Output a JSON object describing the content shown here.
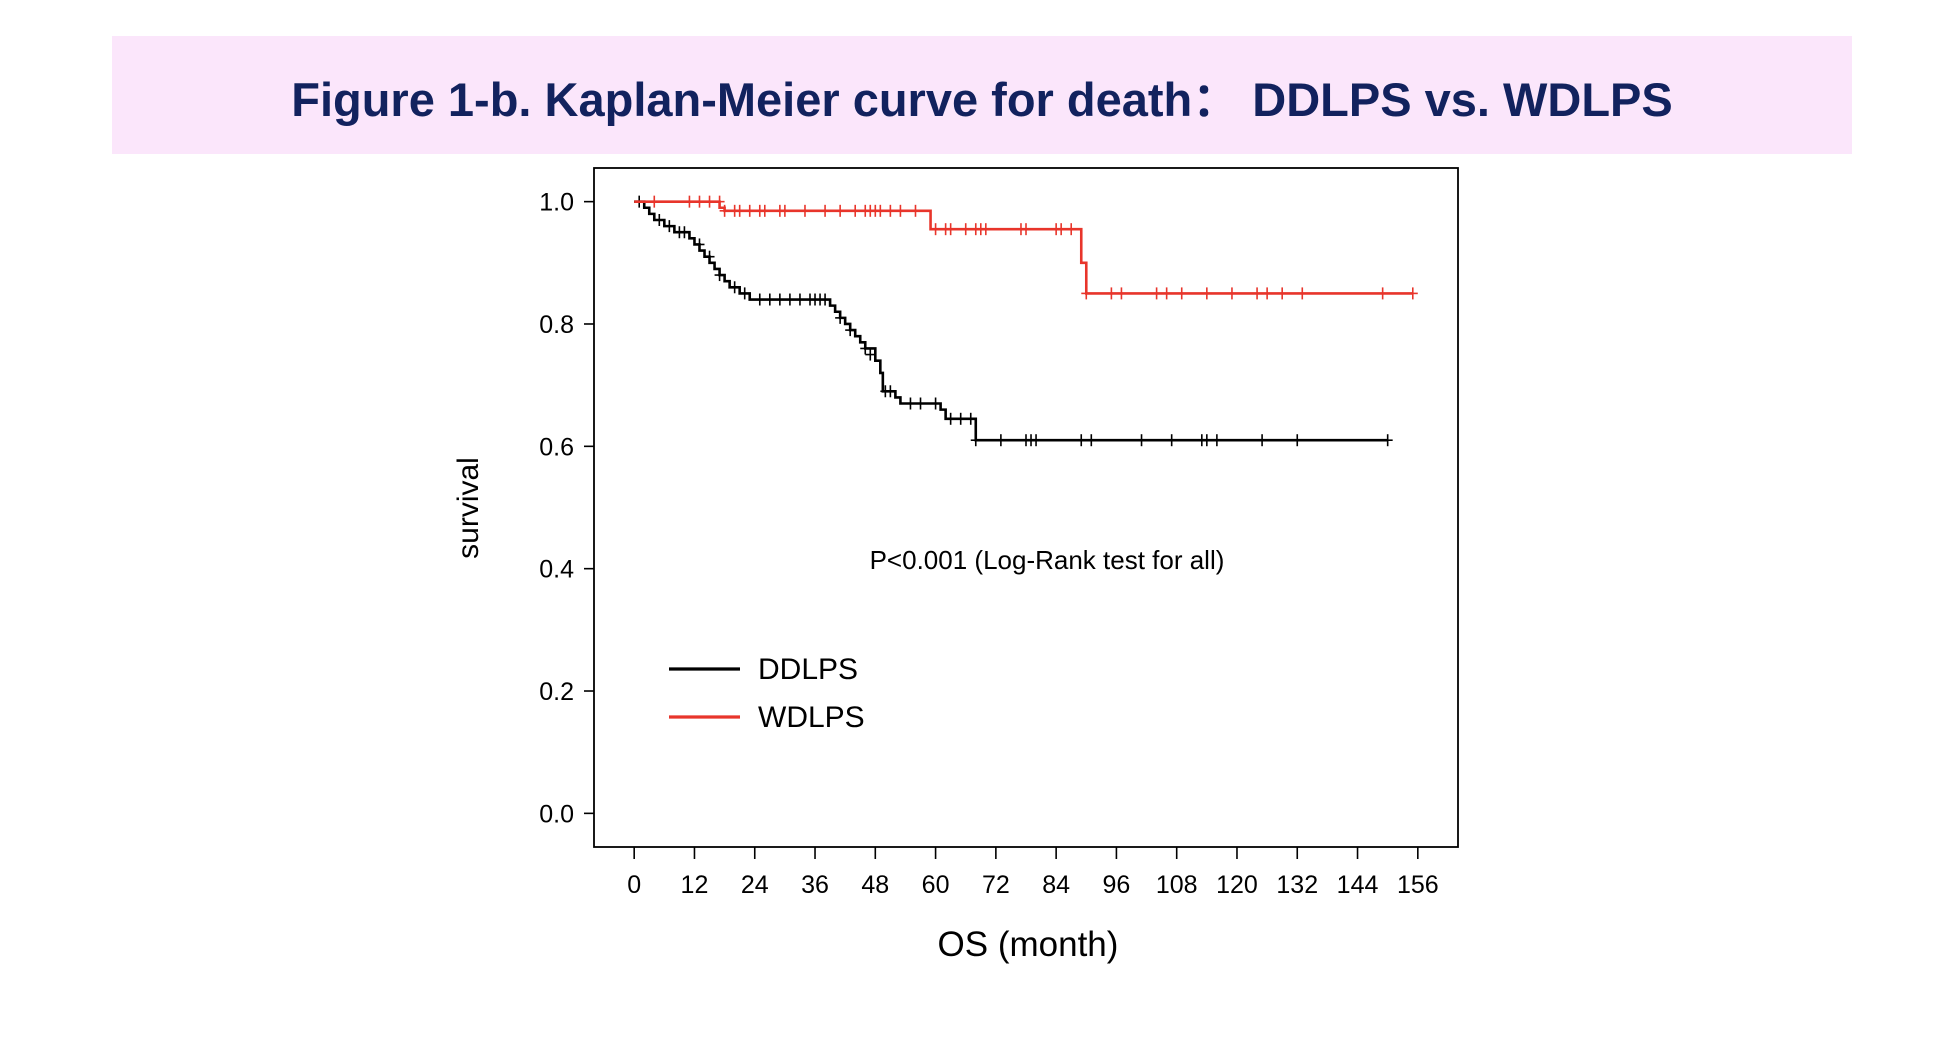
{
  "title": "Figure 1-b. Kaplan-Meier curve for death： DDLPS vs. WDLPS",
  "chart_data": {
    "type": "line",
    "subtype": "kaplan-meier step",
    "xlabel": "OS (month)",
    "ylabel": "survival",
    "xlim": [
      -8,
      164
    ],
    "ylim": [
      -0.055,
      1.055
    ],
    "xticks": [
      0,
      12,
      24,
      36,
      48,
      60,
      72,
      84,
      96,
      108,
      120,
      132,
      144,
      156
    ],
    "yticks": [
      0.0,
      0.2,
      0.4,
      0.6,
      0.8,
      1.0
    ],
    "ytick_labels": [
      "0.0",
      "0.2",
      "0.4",
      "0.6",
      "0.8",
      "1.0"
    ],
    "grid": false,
    "legend_position": "lower-left",
    "annotation": "P<0.001 (Log-Rank test for all)",
    "series": [
      {
        "name": "DDLPS",
        "color": "#000000",
        "steps": [
          [
            0,
            1.0
          ],
          [
            2,
            0.99
          ],
          [
            3,
            0.98
          ],
          [
            4,
            0.97
          ],
          [
            6,
            0.96
          ],
          [
            8,
            0.95
          ],
          [
            11,
            0.94
          ],
          [
            12,
            0.93
          ],
          [
            13,
            0.92
          ],
          [
            14,
            0.91
          ],
          [
            15,
            0.9
          ],
          [
            16,
            0.89
          ],
          [
            17,
            0.88
          ],
          [
            18,
            0.87
          ],
          [
            19,
            0.86
          ],
          [
            21,
            0.85
          ],
          [
            23,
            0.84
          ],
          [
            39,
            0.83
          ],
          [
            40,
            0.82
          ],
          [
            41,
            0.81
          ],
          [
            42,
            0.8
          ],
          [
            43,
            0.79
          ],
          [
            44,
            0.78
          ],
          [
            45,
            0.77
          ],
          [
            46,
            0.76
          ],
          [
            48,
            0.74
          ],
          [
            49,
            0.72
          ],
          [
            49.5,
            0.69
          ],
          [
            52,
            0.68
          ],
          [
            53,
            0.67
          ],
          [
            61,
            0.66
          ],
          [
            62,
            0.645
          ],
          [
            68,
            0.61
          ],
          [
            150,
            0.61
          ]
        ],
        "censored": [
          [
            1,
            1.0
          ],
          [
            5,
            0.97
          ],
          [
            7,
            0.96
          ],
          [
            9,
            0.95
          ],
          [
            10,
            0.95
          ],
          [
            13,
            0.93
          ],
          [
            15,
            0.91
          ],
          [
            17,
            0.88
          ],
          [
            20,
            0.86
          ],
          [
            22,
            0.85
          ],
          [
            25,
            0.84
          ],
          [
            27,
            0.84
          ],
          [
            29,
            0.84
          ],
          [
            31,
            0.84
          ],
          [
            33,
            0.84
          ],
          [
            35,
            0.84
          ],
          [
            36,
            0.84
          ],
          [
            37,
            0.84
          ],
          [
            38,
            0.84
          ],
          [
            41,
            0.81
          ],
          [
            43,
            0.79
          ],
          [
            46,
            0.76
          ],
          [
            47,
            0.75
          ],
          [
            50,
            0.69
          ],
          [
            51,
            0.69
          ],
          [
            55,
            0.67
          ],
          [
            57,
            0.67
          ],
          [
            60,
            0.67
          ],
          [
            63,
            0.645
          ],
          [
            65,
            0.645
          ],
          [
            67,
            0.645
          ],
          [
            68,
            0.61
          ],
          [
            73,
            0.61
          ],
          [
            78,
            0.61
          ],
          [
            79,
            0.61
          ],
          [
            80,
            0.61
          ],
          [
            89,
            0.61
          ],
          [
            91,
            0.61
          ],
          [
            101,
            0.61
          ],
          [
            107,
            0.61
          ],
          [
            113,
            0.61
          ],
          [
            114,
            0.61
          ],
          [
            116,
            0.61
          ],
          [
            125,
            0.61
          ],
          [
            132,
            0.61
          ],
          [
            150,
            0.61
          ]
        ]
      },
      {
        "name": "WDLPS",
        "color": "#e8352b",
        "steps": [
          [
            0,
            1.0
          ],
          [
            17,
            0.99
          ],
          [
            18,
            0.985
          ],
          [
            59,
            0.955
          ],
          [
            89,
            0.9
          ],
          [
            90,
            0.85
          ],
          [
            155,
            0.85
          ]
        ],
        "censored": [
          [
            4,
            1.0
          ],
          [
            11,
            1.0
          ],
          [
            13,
            1.0
          ],
          [
            15,
            1.0
          ],
          [
            17,
            1.0
          ],
          [
            18,
            0.985
          ],
          [
            20,
            0.985
          ],
          [
            21,
            0.985
          ],
          [
            23,
            0.985
          ],
          [
            25,
            0.985
          ],
          [
            26,
            0.985
          ],
          [
            29,
            0.985
          ],
          [
            30,
            0.985
          ],
          [
            34,
            0.985
          ],
          [
            38,
            0.985
          ],
          [
            41,
            0.985
          ],
          [
            44,
            0.985
          ],
          [
            46,
            0.985
          ],
          [
            47,
            0.985
          ],
          [
            48,
            0.985
          ],
          [
            49,
            0.985
          ],
          [
            51,
            0.985
          ],
          [
            53,
            0.985
          ],
          [
            56,
            0.985
          ],
          [
            60,
            0.955
          ],
          [
            62,
            0.955
          ],
          [
            63,
            0.955
          ],
          [
            66,
            0.955
          ],
          [
            68,
            0.955
          ],
          [
            69,
            0.955
          ],
          [
            70,
            0.955
          ],
          [
            77,
            0.955
          ],
          [
            78,
            0.955
          ],
          [
            84,
            0.955
          ],
          [
            85,
            0.955
          ],
          [
            87,
            0.955
          ],
          [
            90,
            0.85
          ],
          [
            95,
            0.85
          ],
          [
            97,
            0.85
          ],
          [
            104,
            0.85
          ],
          [
            106,
            0.85
          ],
          [
            109,
            0.85
          ],
          [
            114,
            0.85
          ],
          [
            119,
            0.85
          ],
          [
            124,
            0.85
          ],
          [
            126,
            0.85
          ],
          [
            129,
            0.85
          ],
          [
            133,
            0.85
          ],
          [
            149,
            0.85
          ],
          [
            155,
            0.85
          ]
        ]
      }
    ]
  }
}
